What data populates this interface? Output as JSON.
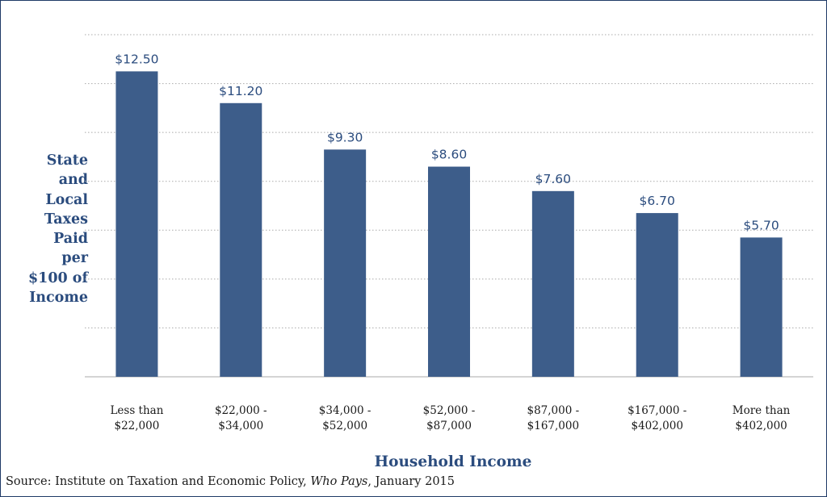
{
  "chart_data": {
    "type": "bar",
    "categories": [
      "Less than\n$22,000",
      "$22,000 -\n$34,000",
      "$34,000 -\n$52,000",
      "$52,000 -\n$87,000",
      "$87,000 -\n$167,000",
      "$167,000 -\n$402,000",
      "More than\n$402,000"
    ],
    "values": [
      12.5,
      11.2,
      9.3,
      8.6,
      7.6,
      6.7,
      5.7
    ],
    "data_labels": [
      "$12.50",
      "$11.20",
      "$9.30",
      "$8.60",
      "$7.60",
      "$6.70",
      "$5.70"
    ],
    "title": "",
    "xlabel": "Household Income",
    "ylabel": "State\nand\nLocal\nTaxes\nPaid\nper\n$100 of\nIncome",
    "ylim": [
      0,
      14
    ],
    "grid": true,
    "bar_color": "#3d5d8a",
    "label_color": "#2b4c7e"
  },
  "source": {
    "prefix": "Source:  Institute on Taxation and Economic Policy, ",
    "title": "Who Pays",
    "suffix": ", January 2015"
  }
}
